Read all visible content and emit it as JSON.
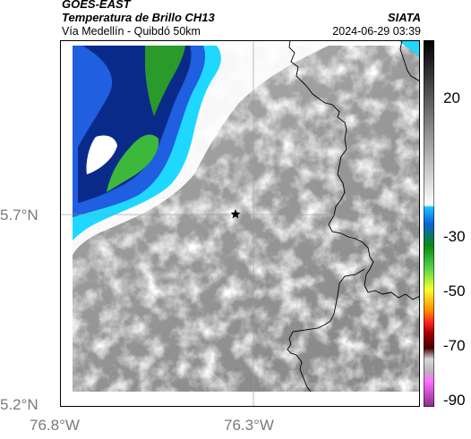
{
  "header": {
    "line1": "GOES-EAST",
    "line2": "Temperatura de Brillo CH13",
    "org": "SIATA",
    "subtitle": "Vía Medellín - Quibdó 50km",
    "timestamp": "2024-06-29 03:39"
  },
  "axes": {
    "x_ticks": [
      "76.8°W",
      "76.3°W"
    ],
    "y_ticks": [
      "5.7°N",
      "5.2°N"
    ]
  },
  "colorbar": {
    "tick_labels": [
      "20",
      "-30",
      "-50",
      "-70",
      "-90"
    ],
    "scale_colors": [
      "#000000",
      "#ffffff",
      "#00c8ff",
      "#006400",
      "#ffff00",
      "#ff0000",
      "#6a0000",
      "#ff69ff"
    ]
  },
  "map": {
    "marker_icon": "star-marker-icon",
    "base_color": "#8c8c8c",
    "cloud_colors": [
      "#1fd8ff",
      "#1f5fe0",
      "#0a2a8a",
      "#2a9a2a"
    ]
  }
}
